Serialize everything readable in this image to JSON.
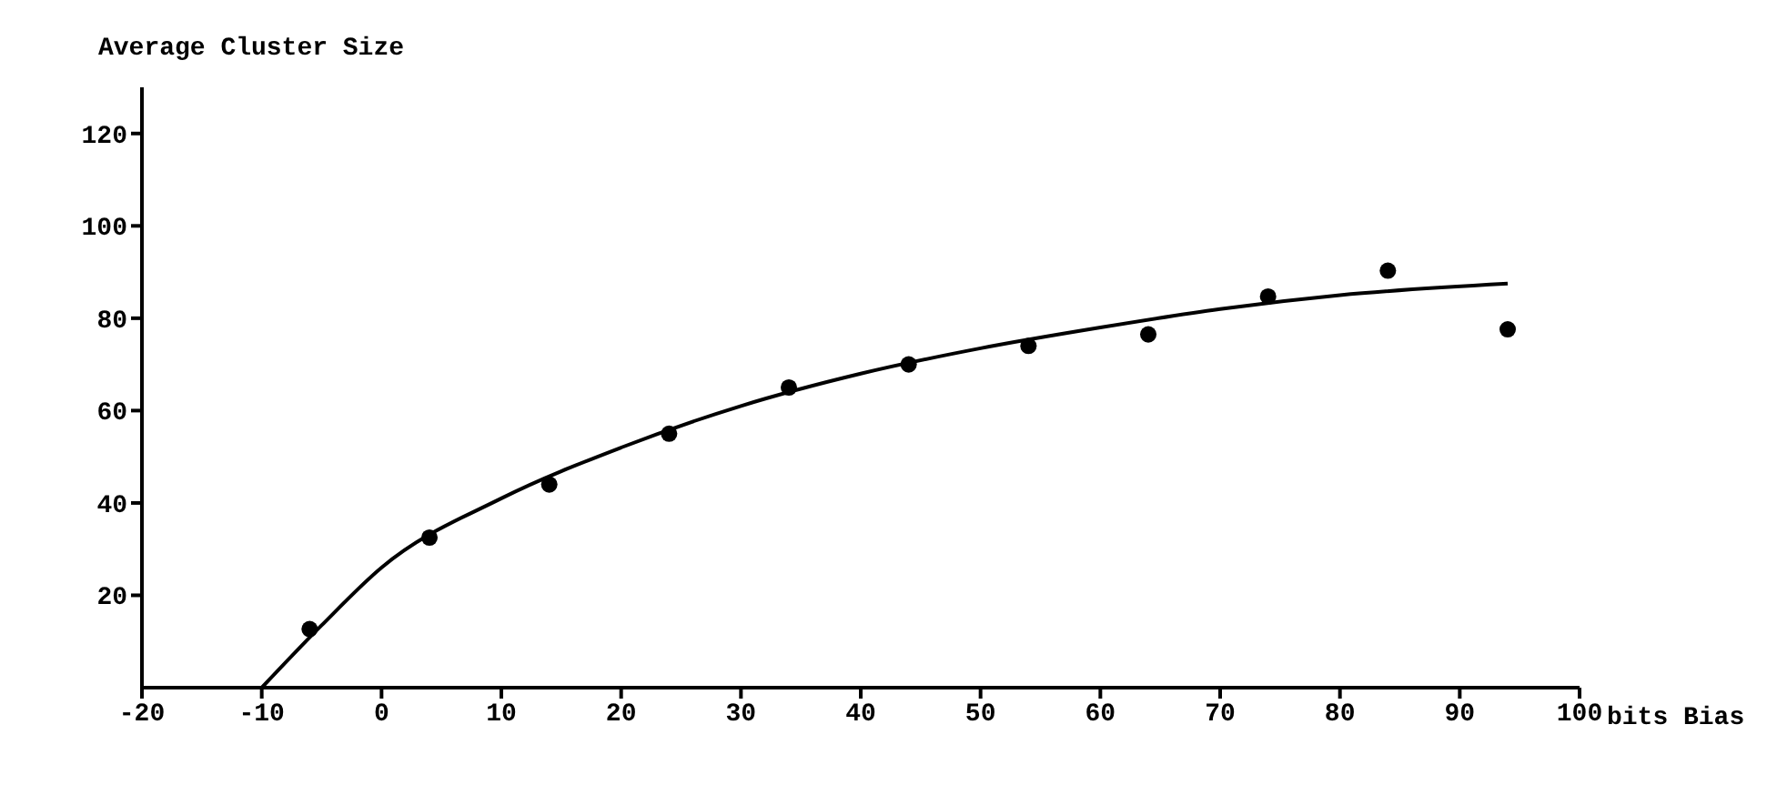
{
  "chart_data": {
    "type": "scatter",
    "xlabel": "bits Bias",
    "ylabel": "Average Cluster Size",
    "xlim": [
      -20,
      100
    ],
    "xticks": [
      -20,
      -10,
      0,
      10,
      20,
      30,
      40,
      50,
      60,
      70,
      80,
      90,
      100
    ],
    "ylim": [
      0,
      130
    ],
    "yticks": [
      20,
      40,
      60,
      80,
      100,
      120
    ],
    "marker": "circle",
    "series": [
      {
        "color": "#000000",
        "x": [
          -6,
          4,
          14,
          24,
          34,
          44,
          54,
          64,
          74,
          84,
          94
        ],
        "values": [
          12.7,
          32.5,
          44,
          55,
          65,
          70,
          74,
          76.5,
          84.7,
          90.3,
          77.6
        ]
      },
      {
        "type": "line",
        "color": "#000000",
        "marker": "none",
        "line_style": "solid",
        "x": [
          -10,
          -5,
          0,
          10,
          20,
          30,
          40,
          50,
          60,
          70,
          80,
          94
        ],
        "values": [
          0,
          13.5,
          26,
          41,
          52,
          61,
          68,
          73.5,
          78,
          82,
          85,
          87.5
        ]
      }
    ]
  }
}
